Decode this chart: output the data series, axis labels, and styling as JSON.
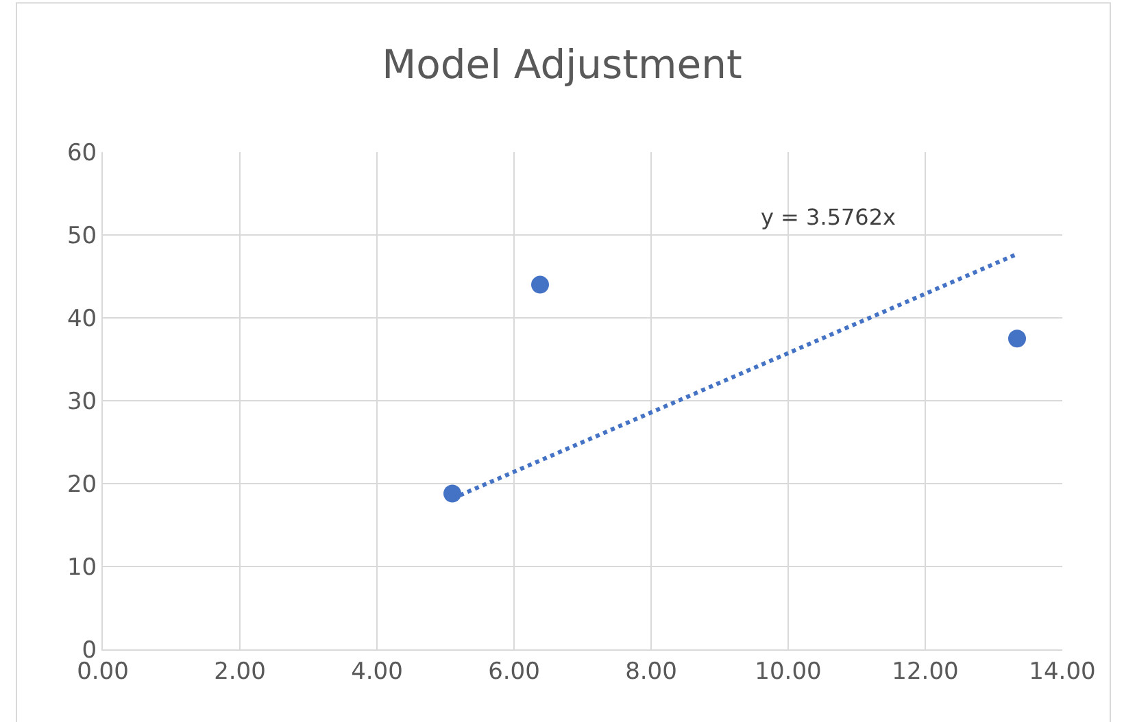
{
  "chart_data": {
    "type": "scatter",
    "title": "Model Adjustment",
    "xlim": [
      0,
      14
    ],
    "xticks": [
      {
        "value": 0,
        "label": "0.00"
      },
      {
        "value": 2,
        "label": "2.00"
      },
      {
        "value": 4,
        "label": "4.00"
      },
      {
        "value": 6,
        "label": "6.00"
      },
      {
        "value": 8,
        "label": "8.00"
      },
      {
        "value": 10,
        "label": "10.00"
      },
      {
        "value": 12,
        "label": "12.00"
      },
      {
        "value": 14,
        "label": "14.00"
      }
    ],
    "ylim": [
      0,
      60
    ],
    "yticks": [
      0,
      10,
      20,
      30,
      40,
      50,
      60
    ],
    "grid": true,
    "marker": "circle",
    "series": [
      {
        "color": "#4472c4",
        "x": [
          5.1,
          6.38,
          13.34
        ],
        "values": [
          18.8,
          44,
          37.5
        ]
      },
      {
        "type": "line",
        "color": "#4472c4",
        "line_style": "dotted",
        "marker": "none",
        "x": [
          5.1,
          13.34
        ],
        "values": [
          18.2,
          47.7
        ]
      }
    ],
    "annotations": [
      "y = 3.5762x"
    ]
  }
}
